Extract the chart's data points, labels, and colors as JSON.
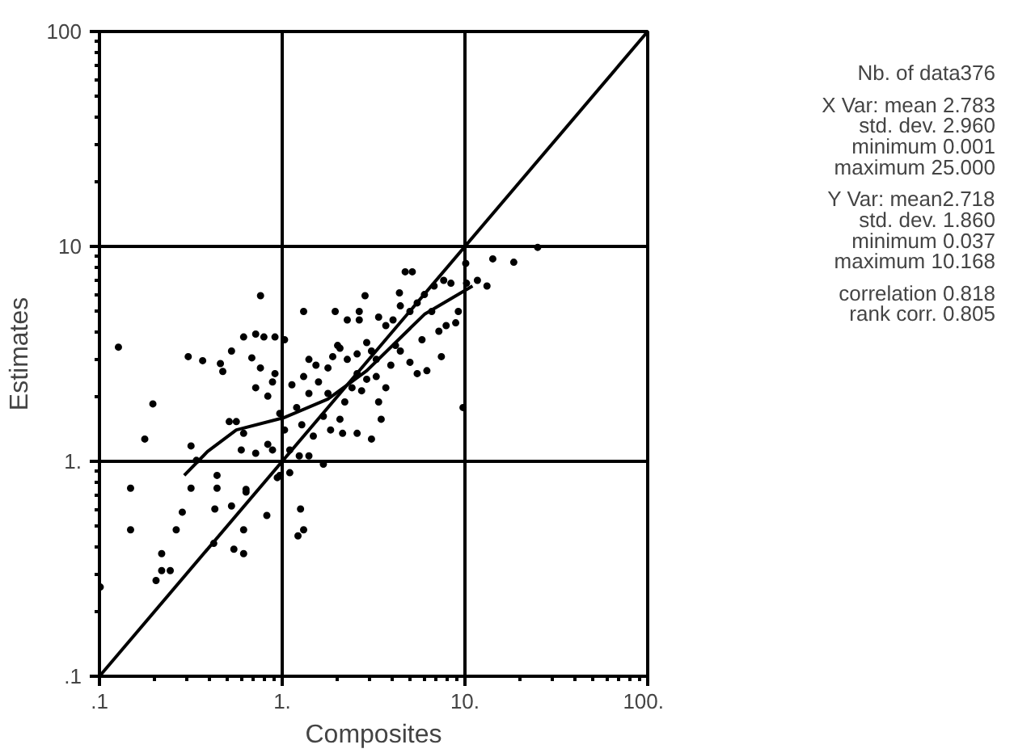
{
  "chart_data": {
    "type": "scatter",
    "xlabel": "Composites",
    "ylabel": "Estimates",
    "log": "xy",
    "grid": true,
    "marker": "circle",
    "line_style": "solid",
    "xlim": [
      0.1,
      100
    ],
    "ylim": [
      0.1,
      100
    ],
    "xticks": [
      {
        "value": 0.1,
        "label": ".1"
      },
      {
        "value": 1,
        "label": "1."
      },
      {
        "value": 10,
        "label": "10."
      },
      {
        "value": 100,
        "label": "100."
      }
    ],
    "yticks": [
      {
        "value": 0.1,
        "label": ".1"
      },
      {
        "value": 1,
        "label": "1."
      },
      {
        "value": 10,
        "label": "10"
      },
      {
        "value": 100,
        "label": "100"
      }
    ],
    "annotations": [
      "Nb. of data376",
      "X Var: mean 2.783",
      "std. dev. 2.960",
      "minimum 0.001",
      "maximum 25.000",
      "Y Var: mean2.718",
      "std. dev. 1.860",
      "minimum 0.037",
      "maximum 10.168",
      "correlation 0.818",
      "rank corr. 0.805"
    ],
    "series": [
      {
        "color": "#000000",
        "x": [
          0.127,
          0.196,
          0.177,
          0.306,
          0.367,
          0.317,
          0.339,
          0.459,
          0.473,
          0.528,
          0.615,
          0.716,
          0.794,
          0.913,
          0.761,
          1.03,
          0.682,
          0.76,
          0.716,
          0.834,
          0.885,
          0.513,
          0.561,
          0.615,
          0.597,
          0.716,
          0.834,
          0.885,
          1.31,
          1.31,
          1.13,
          1.2,
          1.4,
          1.58,
          1.53,
          1.78,
          1.95,
          2.27,
          2.07,
          2.27,
          2.57,
          2.64,
          2.64,
          2.84,
          2.9,
          3.08,
          3.27,
          3.37,
          3.69,
          4.04,
          4.38,
          4.71,
          5.15,
          4.43,
          5.0,
          5.48,
          6.0,
          6.78,
          7.65,
          8.38,
          10.1,
          10.2,
          11.7,
          13.2,
          14.2,
          18.5,
          25,
          9.76,
          8.9,
          7.89,
          7.2,
          9.2,
          6.19,
          5.48,
          5.0,
          5.82,
          4.43,
          3.93,
          3.69,
          3.37,
          3.48,
          3.08,
          2.57,
          2.14,
          2.07,
          1.84,
          1.68,
          1.48,
          1.68,
          1.4,
          1.24,
          1.1,
          0.97,
          1.28,
          2.72,
          2.9,
          2.57,
          2.41,
          3.27,
          4.17,
          2.01,
          1.89,
          1.4,
          1.03,
          0.913,
          0.97,
          1.1,
          1.78,
          2.2,
          7.43,
          6.58,
          0.148,
          0.148,
          0.219,
          0.219,
          0.244,
          0.204,
          0.263,
          0.284,
          0.317,
          0.44,
          0.428,
          0.422,
          0.528,
          0.544,
          0.615,
          0.615,
          0.634,
          0.824,
          1.22,
          1.31,
          1.26,
          0.101,
          0.94,
          0.44,
          0.634
        ],
        "values": [
          3.4,
          1.85,
          1.27,
          3.07,
          2.94,
          1.18,
          1.01,
          2.85,
          2.62,
          3.26,
          3.79,
          3.91,
          3.79,
          3.79,
          5.9,
          3.68,
          3.03,
          2.72,
          2.2,
          2.01,
          2.34,
          1.53,
          1.53,
          1.35,
          1.13,
          1.09,
          1.2,
          1.13,
          4.98,
          2.48,
          2.27,
          1.78,
          2.07,
          2.34,
          2.8,
          2.72,
          4.98,
          4.55,
          3.36,
          2.98,
          3.16,
          4.98,
          4.55,
          5.9,
          3.57,
          3.26,
          2.98,
          4.69,
          4.28,
          4.55,
          6.08,
          7.62,
          7.62,
          5.29,
          4.98,
          5.46,
          5.97,
          6.54,
          6.95,
          6.74,
          8.34,
          6.74,
          6.95,
          6.54,
          8.75,
          8.44,
          9.9,
          1.78,
          4.41,
          4.28,
          4.03,
          4.98,
          2.64,
          2.56,
          2.89,
          3.68,
          3.26,
          2.8,
          2.2,
          1.89,
          1.57,
          1.27,
          1.35,
          1.35,
          1.57,
          1.4,
          1.62,
          1.31,
          0.97,
          1.06,
          1.06,
          0.885,
          0.86,
          1.48,
          2.13,
          2.41,
          2.56,
          2.2,
          2.48,
          3.46,
          3.46,
          3.07,
          2.98,
          1.4,
          2.56,
          1.67,
          1.13,
          2.07,
          1.89,
          3.07,
          4.98,
          0.75,
          0.48,
          0.372,
          0.31,
          0.31,
          0.279,
          0.48,
          0.58,
          0.75,
          0.75,
          0.6,
          0.415,
          0.62,
          0.39,
          0.372,
          0.48,
          0.72,
          0.56,
          0.45,
          0.48,
          0.6,
          0.26,
          0.84,
          0.86,
          0.74
        ]
      },
      {
        "type": "line",
        "marker": "none",
        "color": "#000000",
        "x": [
          0.1,
          100
        ],
        "values": [
          0.1,
          100
        ]
      },
      {
        "type": "line",
        "marker": "none",
        "color": "#000000",
        "x": [
          0.291,
          0.39,
          0.561,
          1.03,
          1.78,
          2.9,
          4.17,
          6.0,
          11.0
        ],
        "values": [
          0.86,
          1.11,
          1.4,
          1.6,
          1.95,
          2.64,
          3.57,
          4.83,
          6.54
        ]
      }
    ]
  }
}
